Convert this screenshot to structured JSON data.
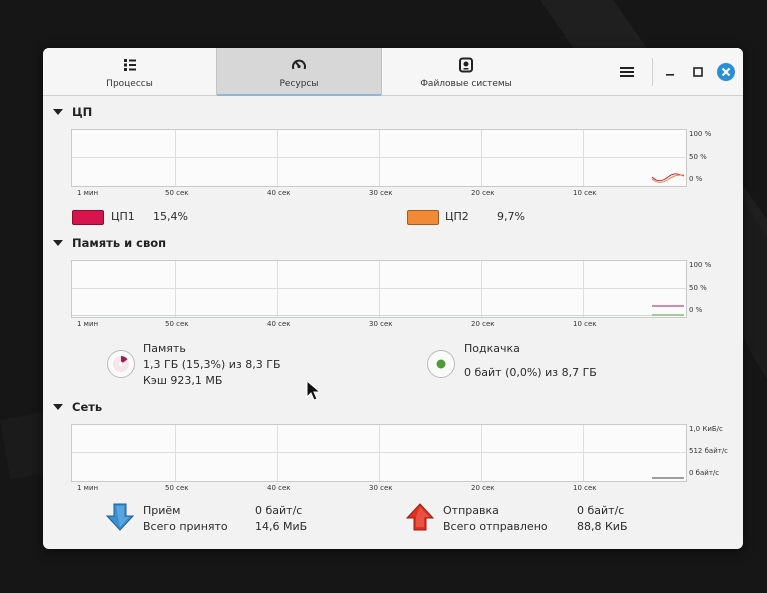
{
  "tabs": [
    {
      "label": "Процессы",
      "icon": "list-icon"
    },
    {
      "label": "Ресурсы",
      "icon": "gauge-icon",
      "active": true
    },
    {
      "label": "Файловые системы",
      "icon": "disk-icon"
    }
  ],
  "cpu": {
    "title": "ЦП",
    "y_labels": [
      "100 %",
      "50 %",
      "0 %"
    ],
    "x_labels": [
      "1 мин",
      "50 сек",
      "40 сек",
      "30 сек",
      "20 сек",
      "10 сек"
    ],
    "cores": [
      {
        "name": "ЦП1",
        "value": "15,4%",
        "color": "#d6154f"
      },
      {
        "name": "ЦП2",
        "value": "9,7%",
        "color": "#f08a36"
      }
    ]
  },
  "memory": {
    "title": "Память и своп",
    "y_labels": [
      "100 %",
      "50 %",
      "0 %"
    ],
    "x_labels": [
      "1 мин",
      "50 сек",
      "40 сек",
      "30 сек",
      "20 сек",
      "10 сек"
    ],
    "ram": {
      "label": "Память",
      "usage": "1,3 ГБ (15,3%) из 8,3 ГБ",
      "cache": "Кэш 923,1 МБ",
      "fraction": 0.153,
      "color": "#9b2150"
    },
    "swap": {
      "label": "Подкачка",
      "usage": "0 байт (0,0%) из 8,7 ГБ",
      "fraction": 0.0,
      "color": "#4f9a3a"
    }
  },
  "network": {
    "title": "Сеть",
    "y_labels": [
      "1,0 КиБ/с",
      "512 байт/с",
      "0 байт/с"
    ],
    "x_labels": [
      "1 мин",
      "50 сек",
      "40 сек",
      "30 сек",
      "20 сек",
      "10 сек"
    ],
    "receive": {
      "label": "Приём",
      "rate": "0 байт/с",
      "total_label": "Всего принято",
      "total": "14,6 МиБ",
      "color": "#3a8fd0"
    },
    "send": {
      "label": "Отправка",
      "rate": "0 байт/с",
      "total_label": "Всего отправлено",
      "total": "88,8 КиБ",
      "color": "#e03020"
    }
  }
}
